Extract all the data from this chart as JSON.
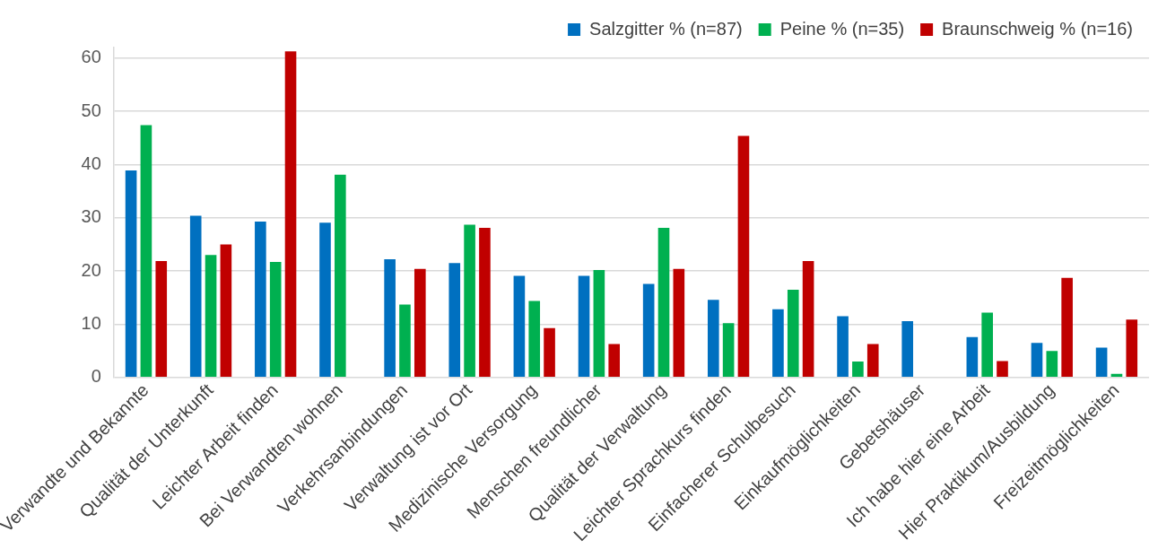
{
  "chart_data": {
    "type": "bar",
    "categories": [
      "Verwandte und Bekannte",
      "Qualität der Unterkunft",
      "Leichter Arbeit finden",
      "Bei Verwandten wohnen",
      "Verkehrsanbindungen",
      "Verwaltung ist vor Ort",
      "Medizinische Versorgung",
      "Menschen freundlicher",
      "Qualität der Verwaltung",
      "Leichter Sprachkurs finden",
      "Einfacherer Schulbesuch",
      "Einkaufmöglichkeiten",
      "Gebetshäuser",
      "Ich habe hier eine Arbeit",
      "Hier Praktikum/Ausbildung",
      "Freizeitmöglichkeiten"
    ],
    "series": [
      {
        "name": "Salzgitter % (n=87)",
        "color": "#0070c0",
        "values": [
          38.9,
          30.4,
          29.3,
          29.1,
          22.2,
          21.5,
          19.1,
          19.1,
          17.6,
          14.6,
          12.8,
          11.5,
          10.6,
          7.6,
          6.5,
          5.6
        ]
      },
      {
        "name": "Peine % (n=35)",
        "color": "#00b050",
        "values": [
          47.4,
          23.0,
          21.7,
          38.1,
          13.7,
          28.7,
          14.4,
          20.2,
          28.1,
          10.2,
          16.5,
          3.0,
          0,
          12.2,
          5.0,
          0.7
        ]
      },
      {
        "name": "Braunschweig % (n=16)",
        "color": "#c00000",
        "values": [
          21.9,
          25.0,
          61.3,
          0,
          20.4,
          28.1,
          9.3,
          6.3,
          20.4,
          45.4,
          21.9,
          6.3,
          0,
          3.1,
          18.7,
          10.9
        ]
      }
    ],
    "ylim": [
      0,
      62
    ],
    "yticks": [
      0,
      10,
      20,
      30,
      40,
      50,
      60
    ],
    "grid": "y",
    "legend": "top right"
  }
}
